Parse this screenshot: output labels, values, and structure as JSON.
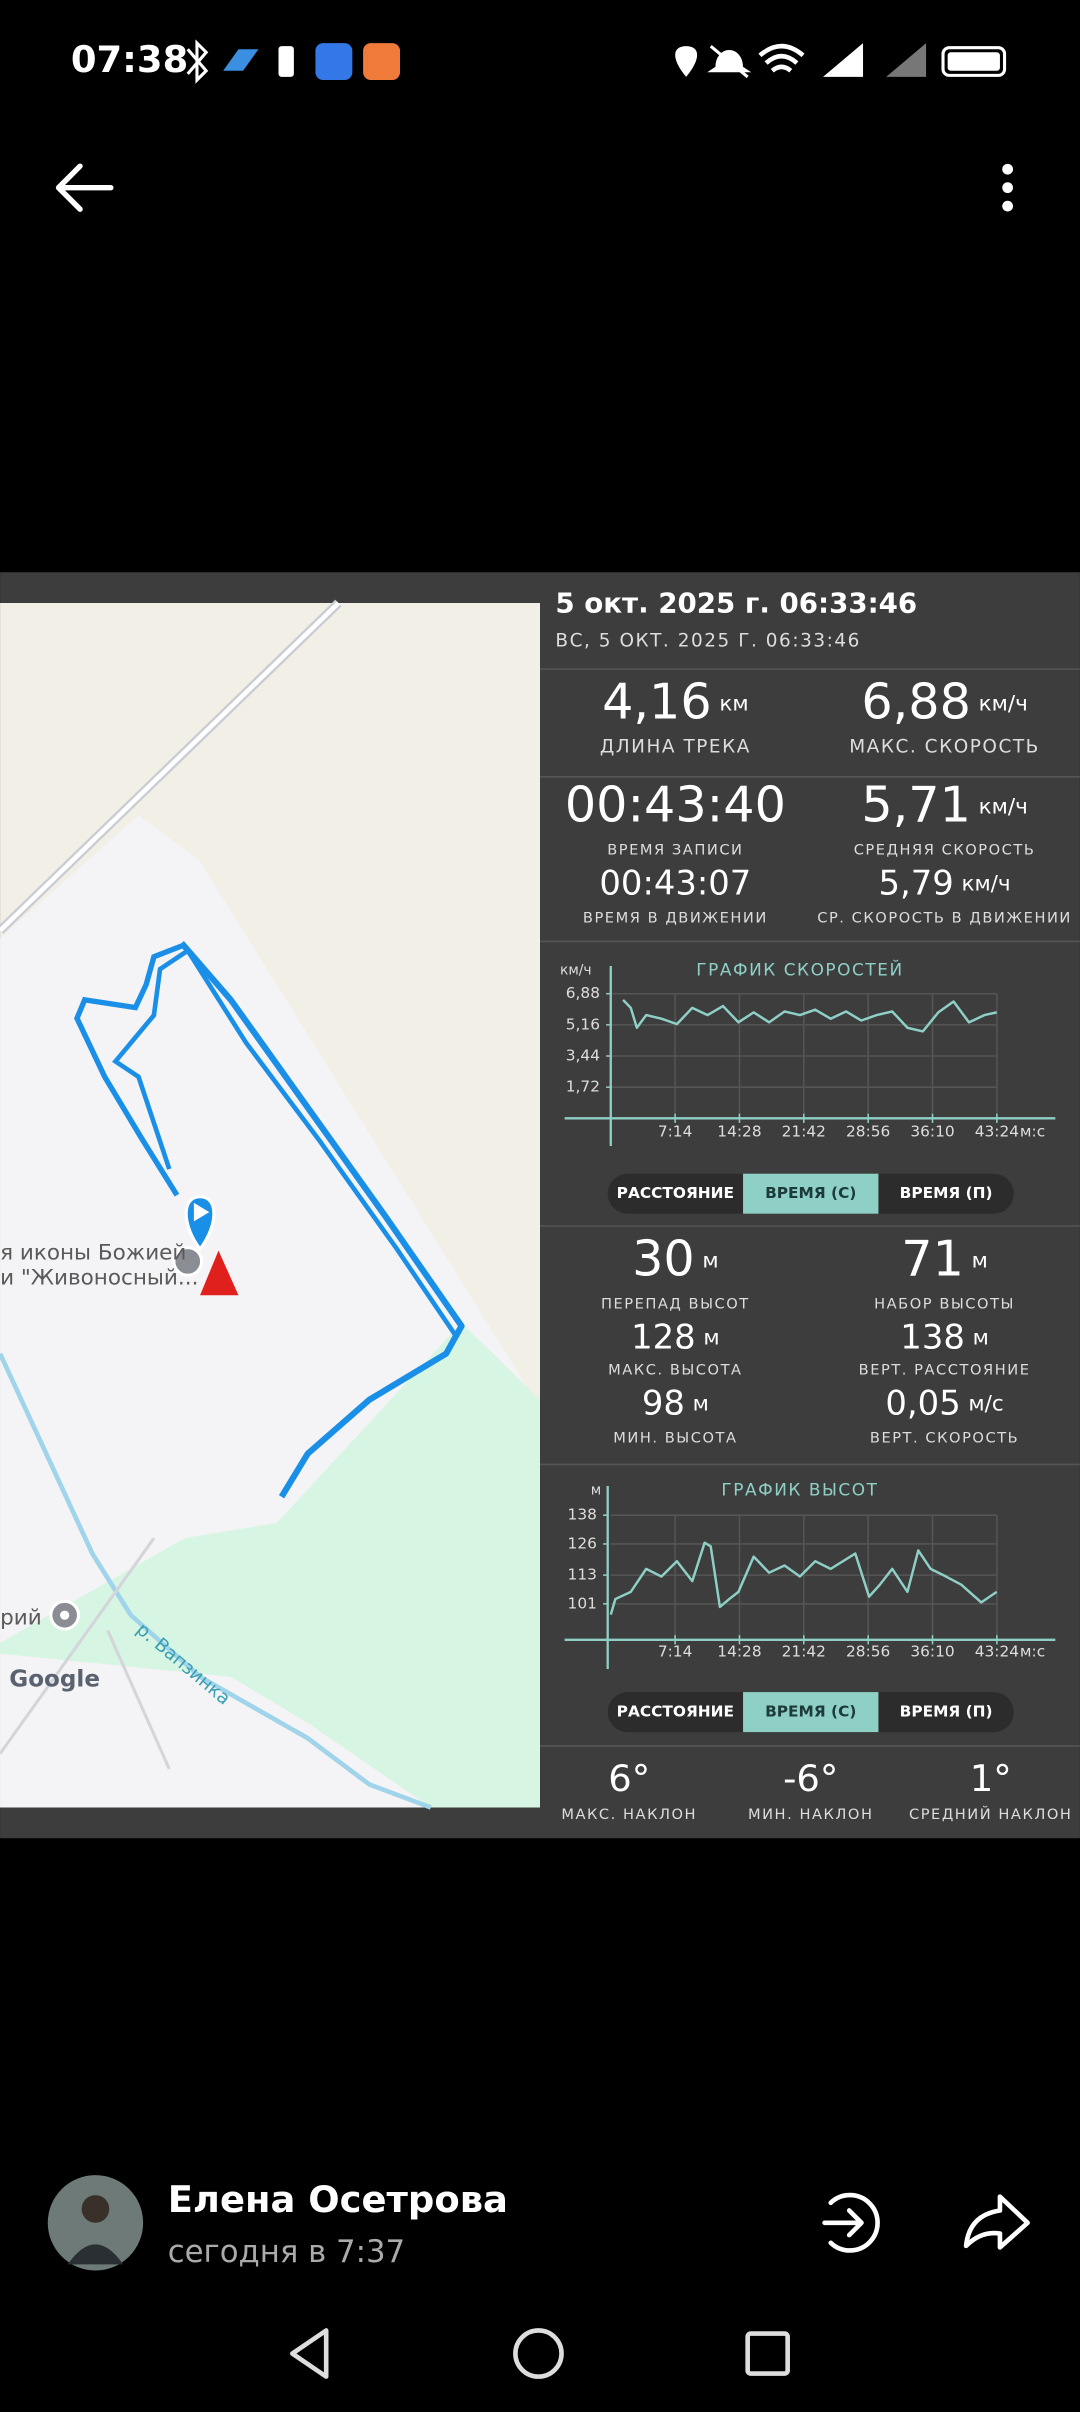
{
  "status_bar": {
    "time": "07:38"
  },
  "map": {
    "labels": [
      "я иконы Божией",
      "и \"Живоносный...",
      "рий",
      "р. Вапзинка",
      "Google"
    ]
  },
  "track": {
    "date_title": "5 окт. 2025 г. 06:33:46",
    "date_subtitle": "ВС, 5 ОКТ. 2025 Г. 06:33:46",
    "stats": [
      {
        "value": "4,16",
        "unit": "км",
        "label": "ДЛИНА ТРЕКА"
      },
      {
        "value": "6,88",
        "unit": "км/ч",
        "label": "МАКС. СКОРОСТЬ"
      },
      {
        "value": "00:43:40",
        "label": "ВРЕМЯ ЗАПИСИ"
      },
      {
        "value": "5,71",
        "unit": "км/ч",
        "label": "СРЕДНЯЯ СКОРОСТЬ"
      },
      {
        "value": "00:43:07",
        "label": "ВРЕМЯ В ДВИЖЕНИИ"
      },
      {
        "value": "5,79",
        "unit": "км/ч",
        "label": "СР. СКОРОСТЬ В ДВИЖЕНИИ"
      },
      {
        "value": "30",
        "unit": "м",
        "label": "ПЕРЕПАД ВЫСОТ"
      },
      {
        "value": "71",
        "unit": "м",
        "label": "НАБОР ВЫСОТЫ"
      },
      {
        "value": "128",
        "unit": "м",
        "label": "МАКС. ВЫСОТА"
      },
      {
        "value": "138",
        "unit": "м",
        "label": "ВЕРТ. РАССТОЯНИЕ"
      },
      {
        "value": "98",
        "unit": "м",
        "label": "МИН. ВЫСОТА"
      },
      {
        "value": "0,05",
        "unit": "м/с",
        "label": "ВЕРТ. СКОРОСТЬ"
      },
      {
        "value": "6°",
        "label": "МАКС. НАКЛОН"
      },
      {
        "value": "-6°",
        "label": "МИН. НАКЛОН"
      },
      {
        "value": "1°",
        "label": "СРЕДНИЙ НАКЛОН"
      }
    ],
    "toggles": [
      {
        "options": [
          "РАССТОЯНИЕ",
          "ВРЕМЯ (С)",
          "ВРЕМЯ (П)"
        ],
        "selected": 1
      },
      {
        "options": [
          "РАССТОЯНИЕ",
          "ВРЕМЯ (С)",
          "ВРЕМЯ (П)"
        ],
        "selected": 1
      }
    ]
  },
  "chart_data": [
    {
      "type": "line",
      "title": "ГРАФИК СКОРОСТЕЙ",
      "y_label": "км/ч",
      "x_label": "м:с",
      "x": [
        83,
        135,
        176,
        239,
        342,
        446,
        550,
        653,
        757,
        861,
        964,
        1068,
        1172,
        1276,
        1379,
        1483,
        1587,
        1690,
        1794,
        1898,
        2001,
        2105,
        2209,
        2312,
        2416,
        2520,
        2603
      ],
      "series": [
        {
          "color": "#8fd0c6",
          "values": [
            6.54,
            6.1,
            5.0,
            5.7,
            5.5,
            5.2,
            6.1,
            5.7,
            6.2,
            5.3,
            5.85,
            5.3,
            5.9,
            5.7,
            6.0,
            5.5,
            5.9,
            5.4,
            5.7,
            5.9,
            5.0,
            4.8,
            5.85,
            6.45,
            5.3,
            5.7,
            5.85
          ]
        }
      ],
      "xlim": [
        0,
        2604
      ],
      "ylim": [
        0,
        6.88
      ],
      "xticks": [
        {
          "value": 434,
          "label": "7:14"
        },
        {
          "value": 868,
          "label": "14:28"
        },
        {
          "value": 1302,
          "label": "21:42"
        },
        {
          "value": 1736,
          "label": "28:56"
        },
        {
          "value": 2170,
          "label": "36:10"
        },
        {
          "value": 2604,
          "label": "43:24"
        }
      ],
      "yticks": [
        {
          "value": 1.72,
          "label": "1,72"
        },
        {
          "value": 3.44,
          "label": "3,44"
        },
        {
          "value": 5.16,
          "label": "5,16"
        },
        {
          "value": 6.88,
          "label": "6,88"
        }
      ],
      "grid": true
    },
    {
      "type": "line",
      "title": "ГРАФИК ВЫСОТ",
      "y_label": "м",
      "x_label": "м:с",
      "x": [
        0,
        31,
        135,
        239,
        342,
        446,
        550,
        633,
        674,
        736,
        799,
        861,
        964,
        1068,
        1172,
        1276,
        1379,
        1483,
        1649,
        1742,
        1815,
        1898,
        2001,
        2074,
        2157,
        2261,
        2364,
        2499,
        2603
      ],
      "series": [
        {
          "color": "#8fd0c6",
          "values": [
            96.5,
            103,
            106,
            115.6,
            112.4,
            118.8,
            110.5,
            126.5,
            125,
            99.7,
            103,
            106,
            120.7,
            114,
            117,
            112.4,
            118.8,
            115.6,
            122,
            104,
            109,
            115.6,
            106,
            123.3,
            115.6,
            112.4,
            109,
            101.6,
            106
          ]
        }
      ],
      "xlim": [
        0,
        2604
      ],
      "ylim": [
        86,
        138
      ],
      "xticks": [
        {
          "value": 434,
          "label": "7:14"
        },
        {
          "value": 868,
          "label": "14:28"
        },
        {
          "value": 1302,
          "label": "21:42"
        },
        {
          "value": 1736,
          "label": "28:56"
        },
        {
          "value": 2170,
          "label": "36:10"
        },
        {
          "value": 2604,
          "label": "43:24"
        }
      ],
      "yticks": [
        101,
        113,
        126,
        138
      ],
      "grid": true
    }
  ],
  "post": {
    "author": "Елена Осетрова",
    "time": "сегодня в 7:37"
  }
}
